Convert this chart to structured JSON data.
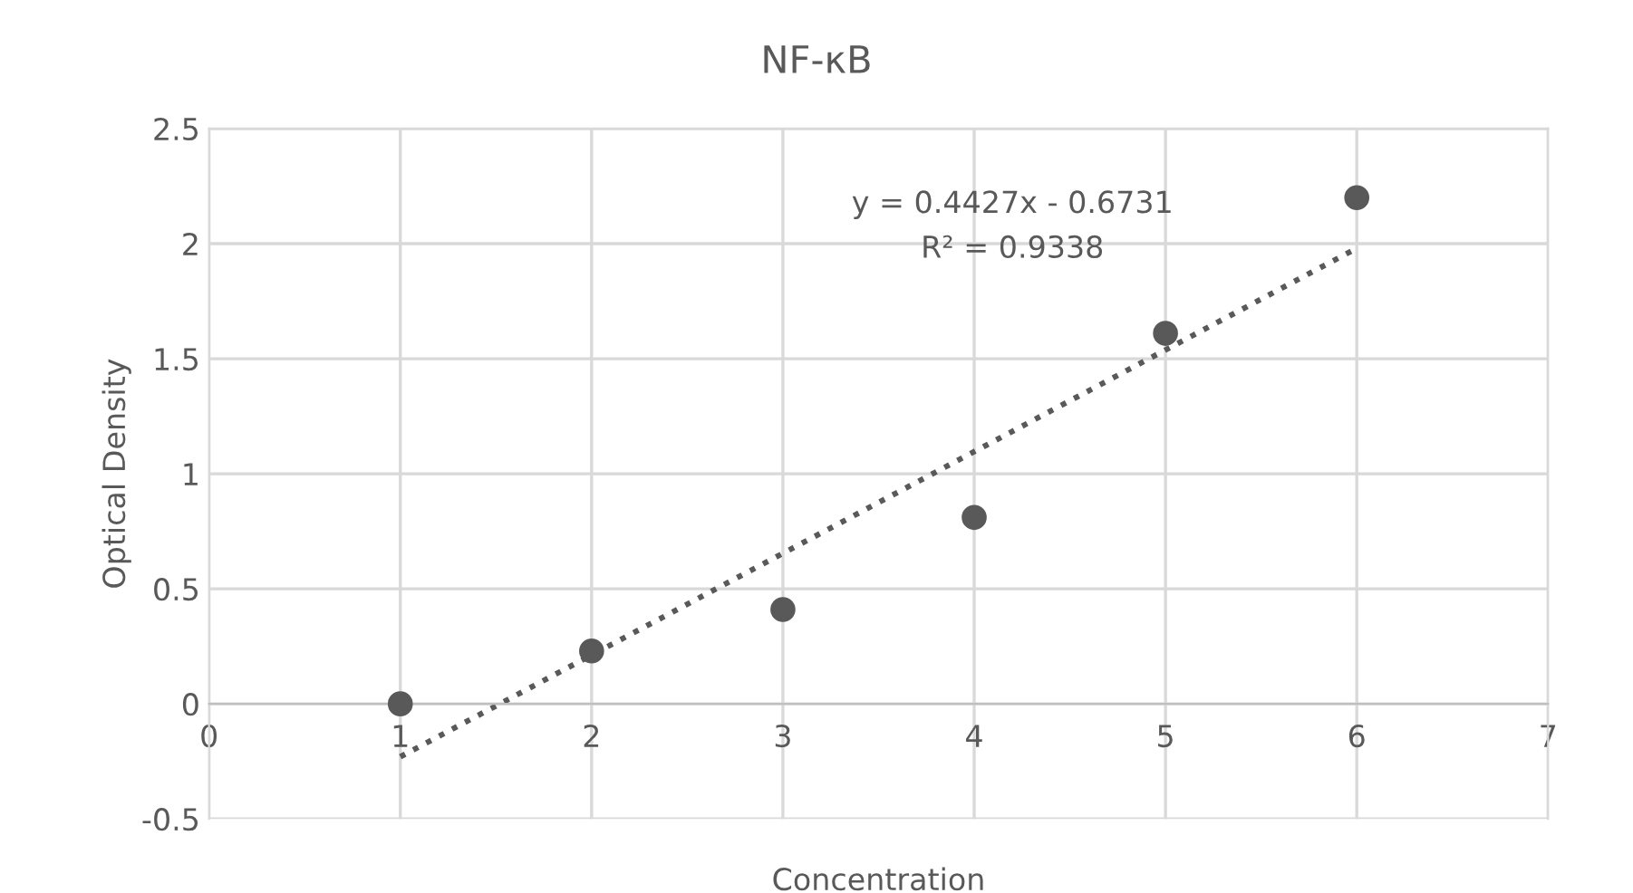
{
  "chart_data": {
    "type": "scatter",
    "title": "NF-κB",
    "xlabel": "Concentration",
    "ylabel": "Optical Density",
    "series": [
      {
        "color": "#595959",
        "x": [
          1,
          2,
          3,
          4,
          5,
          6
        ],
        "values": [
          0,
          0.23,
          0.41,
          0.81,
          1.61,
          2.2
        ],
        "marker": "circle"
      },
      {
        "type": "line",
        "color": "#595959",
        "x": [
          1,
          6
        ],
        "values": [
          -0.23,
          1.98
        ],
        "line_style": "dotted",
        "marker": "none"
      }
    ],
    "annotations": [
      "y = 0.4427x - 0.6731",
      "R² = 0.9338"
    ],
    "xlim": [
      0,
      7
    ],
    "xticks": [
      0,
      1,
      2,
      3,
      4,
      5,
      6,
      7
    ],
    "ylim": [
      -0.5,
      2.5
    ],
    "yticks": [
      -0.5,
      0,
      0.5,
      1,
      1.5,
      2,
      2.5
    ],
    "grid": true,
    "legend": false
  }
}
